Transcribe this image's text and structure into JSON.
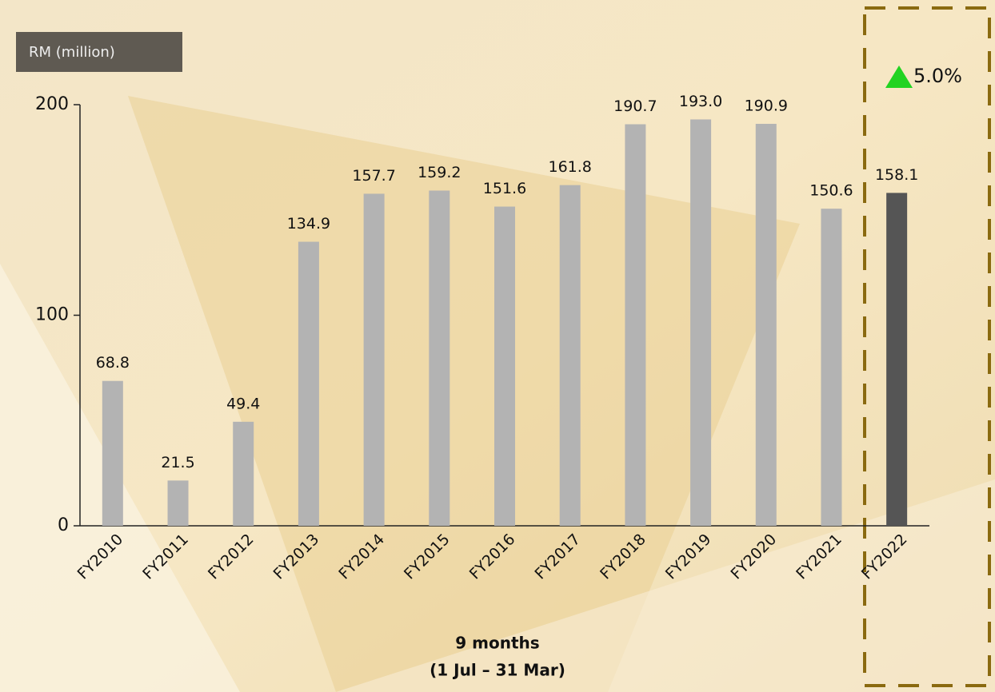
{
  "chart_data": {
    "type": "bar",
    "y_label": "RM (million)",
    "categories": [
      "FY2010",
      "FY2011",
      "FY2012",
      "FY2013",
      "FY2014",
      "FY2015",
      "FY2016",
      "FY2017",
      "FY2018",
      "FY2019",
      "FY2020",
      "FY2021",
      "FY2022"
    ],
    "values": [
      68.8,
      21.5,
      49.4,
      134.9,
      157.7,
      159.2,
      151.6,
      161.8,
      190.7,
      193.0,
      190.9,
      150.6,
      158.1
    ],
    "value_labels": [
      "68.8",
      "21.5",
      "49.4",
      "134.9",
      "157.7",
      "159.2",
      "151.6",
      "161.8",
      "190.7",
      "193.0",
      "190.9",
      "150.6",
      "158.1"
    ],
    "colors": [
      "#b3b3b3",
      "#b3b3b3",
      "#b3b3b3",
      "#b3b3b3",
      "#b3b3b3",
      "#b3b3b3",
      "#b3b3b3",
      "#b3b3b3",
      "#b3b3b3",
      "#b3b3b3",
      "#b3b3b3",
      "#b3b3b3",
      "#555555"
    ],
    "ylim": [
      0,
      200
    ],
    "yticks": [
      0,
      100,
      200
    ],
    "x_label": [
      "9 months",
      "(1 Jul – 31 Mar)"
    ],
    "annotation": "5.0%"
  }
}
